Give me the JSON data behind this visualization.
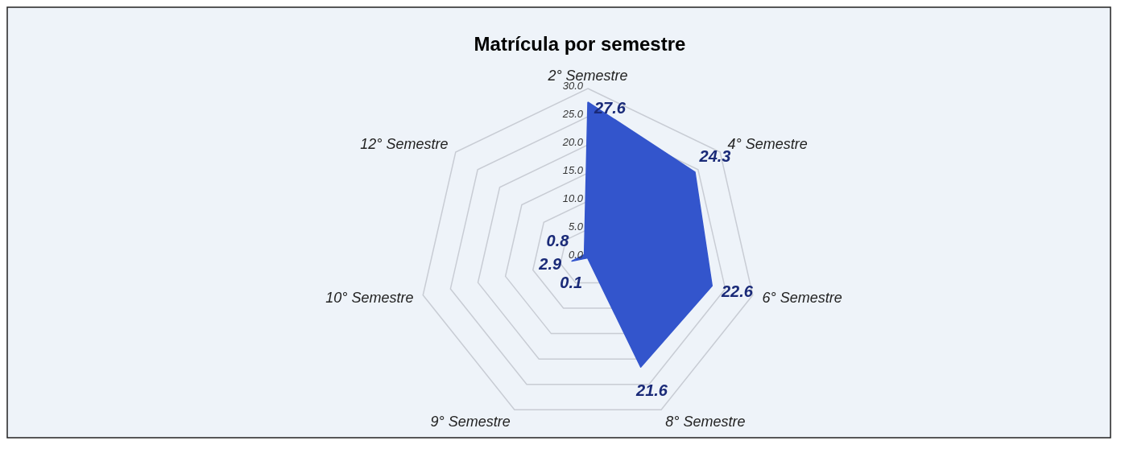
{
  "chart_data": {
    "type": "radar",
    "title": "Matrícula por semestre",
    "categories": [
      "2° Semestre",
      "4° Semestre",
      "6° Semestre",
      "8° Semestre",
      "9° Semestre",
      "10° Semestre",
      "12° Semestre"
    ],
    "series": [
      {
        "color": "#3355cc",
        "values": [
          27.6,
          24.3,
          22.6,
          21.6,
          0.1,
          2.9,
          0.8
        ]
      }
    ],
    "ylim": [
      0,
      30
    ],
    "yticks": [
      {
        "value": 0,
        "label": "0.0"
      },
      {
        "value": 5,
        "label": "5.0"
      },
      {
        "value": 10,
        "label": "10.0"
      },
      {
        "value": 15,
        "label": "15.0"
      },
      {
        "value": 20,
        "label": "20.0"
      },
      {
        "value": 25,
        "label": "25.0"
      },
      {
        "value": 30,
        "label": "30.0"
      }
    ],
    "grid": true,
    "data_labels": true
  }
}
